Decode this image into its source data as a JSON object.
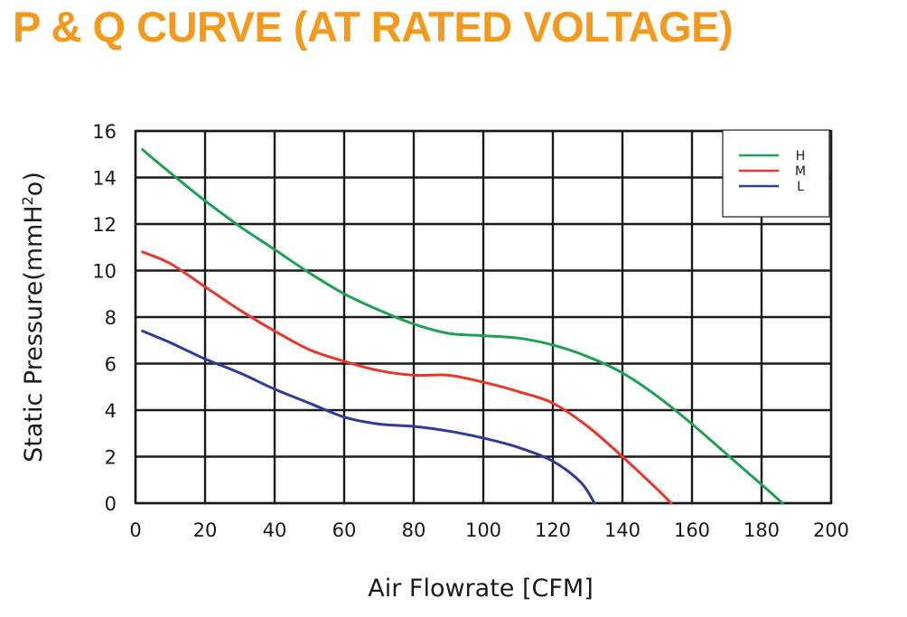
{
  "title": "P & Q CURVE (AT RATED VOLTAGE)",
  "chart_data": {
    "type": "line",
    "xlabel": "Air  Flowrate   [CFM]",
    "ylabel_main": "Static Pressure(mmH",
    "ylabel_sup": "2",
    "ylabel_end": "o)",
    "xlim": [
      0,
      200
    ],
    "ylim": [
      0,
      16
    ],
    "xticks": [
      0,
      20,
      40,
      60,
      80,
      100,
      120,
      140,
      160,
      180,
      200
    ],
    "yticks": [
      0,
      2,
      4,
      6,
      8,
      10,
      12,
      14,
      16
    ],
    "grid": true,
    "legend_position": "top-right",
    "series": [
      {
        "name": "H",
        "color": "#1fa055",
        "points": [
          [
            2,
            15.2
          ],
          [
            10,
            14.2
          ],
          [
            20,
            13.0
          ],
          [
            30,
            11.9
          ],
          [
            40,
            10.9
          ],
          [
            50,
            9.9
          ],
          [
            60,
            9.0
          ],
          [
            70,
            8.3
          ],
          [
            80,
            7.7
          ],
          [
            90,
            7.3
          ],
          [
            100,
            7.2
          ],
          [
            110,
            7.1
          ],
          [
            120,
            6.8
          ],
          [
            130,
            6.3
          ],
          [
            140,
            5.6
          ],
          [
            150,
            4.6
          ],
          [
            160,
            3.4
          ],
          [
            170,
            2.1
          ],
          [
            180,
            0.8
          ],
          [
            186,
            0.0
          ]
        ]
      },
      {
        "name": "M",
        "color": "#e8382b",
        "points": [
          [
            2,
            10.8
          ],
          [
            10,
            10.3
          ],
          [
            20,
            9.3
          ],
          [
            30,
            8.3
          ],
          [
            40,
            7.4
          ],
          [
            50,
            6.6
          ],
          [
            60,
            6.1
          ],
          [
            70,
            5.7
          ],
          [
            80,
            5.5
          ],
          [
            90,
            5.5
          ],
          [
            100,
            5.2
          ],
          [
            110,
            4.8
          ],
          [
            120,
            4.3
          ],
          [
            130,
            3.3
          ],
          [
            140,
            2.0
          ],
          [
            150,
            0.6
          ],
          [
            154,
            0.0
          ]
        ]
      },
      {
        "name": "L",
        "color": "#2f3b9b",
        "points": [
          [
            2,
            7.4
          ],
          [
            10,
            6.9
          ],
          [
            20,
            6.2
          ],
          [
            30,
            5.6
          ],
          [
            40,
            4.9
          ],
          [
            50,
            4.3
          ],
          [
            60,
            3.7
          ],
          [
            70,
            3.4
          ],
          [
            80,
            3.3
          ],
          [
            90,
            3.1
          ],
          [
            100,
            2.8
          ],
          [
            110,
            2.4
          ],
          [
            120,
            1.8
          ],
          [
            128,
            0.9
          ],
          [
            132,
            0.0
          ]
        ]
      }
    ]
  }
}
